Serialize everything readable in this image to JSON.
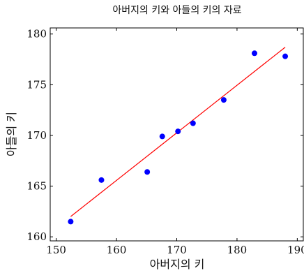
{
  "chart_data": {
    "type": "scatter",
    "title": "아버지의 키와 아들의 키의 자료",
    "xlabel": "아버지의 키",
    "ylabel": "아들의 키",
    "xlim": [
      149,
      191
    ],
    "ylim": [
      159.6,
      180.6
    ],
    "xticks": [
      150,
      160,
      170,
      180,
      190
    ],
    "yticks": [
      160,
      165,
      170,
      175,
      180
    ],
    "grid": false,
    "colors": {
      "points": "#0000ff",
      "fit": "#ff0000"
    },
    "points": [
      {
        "x": 152.4,
        "y": 161.5
      },
      {
        "x": 157.5,
        "y": 165.6
      },
      {
        "x": 165.1,
        "y": 166.4
      },
      {
        "x": 167.6,
        "y": 169.9
      },
      {
        "x": 170.2,
        "y": 170.4
      },
      {
        "x": 172.7,
        "y": 171.2
      },
      {
        "x": 177.8,
        "y": 173.5
      },
      {
        "x": 182.9,
        "y": 178.1
      },
      {
        "x": 188.0,
        "y": 177.8
      }
    ],
    "fit_line": [
      {
        "x": 152.4,
        "y": 162.0
      },
      {
        "x": 188.0,
        "y": 178.7
      }
    ]
  }
}
